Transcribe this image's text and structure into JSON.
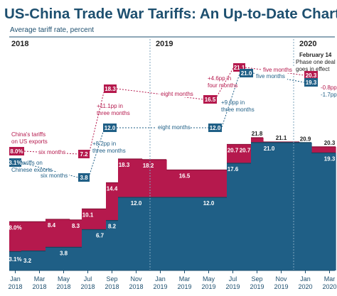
{
  "title": "US-China Trade War Tariffs: An Up-to-Date Chart",
  "subtitle": "Average tariff rate, percent",
  "years": [
    "2018",
    "2019",
    "2020"
  ],
  "colors": {
    "china": "#b5194d",
    "china_dark": "#8b1038",
    "us": "#1f5f86",
    "us_dark": "#15455f",
    "annotation_text": "#1d4f6f",
    "grid": "#7fa6bd"
  },
  "chart_data": {
    "type": "area",
    "x": [
      "2018-01",
      "2018-02",
      "2018-03",
      "2018-04",
      "2018-05",
      "2018-06",
      "2018-07",
      "2018-08",
      "2018-09",
      "2018-10",
      "2018-11",
      "2018-12",
      "2019-01",
      "2019-02",
      "2019-03",
      "2019-04",
      "2019-05",
      "2019-06",
      "2019-07",
      "2019-08",
      "2019-09",
      "2019-10",
      "2019-11",
      "2019-12",
      "2020-01",
      "2020-02",
      "2020-03"
    ],
    "x_ticks": [
      "Jan 2018",
      "Mar 2018",
      "May 2018",
      "Jul 2018",
      "Sep 2018",
      "Nov 2018",
      "Jan 2019",
      "Mar 2019",
      "May 2019",
      "Jul 2019",
      "Sep 2019",
      "Nov 2019",
      "Jan 2020",
      "Mar 2020"
    ],
    "series": [
      {
        "key": "china",
        "name": "China's tariffs on US exports",
        "values": [
          8.0,
          8.0,
          8.0,
          8.4,
          8.4,
          8.3,
          10.1,
          10.1,
          14.4,
          18.3,
          18.3,
          18.2,
          18.2,
          16.5,
          16.5,
          16.5,
          16.5,
          16.5,
          20.7,
          20.7,
          21.8,
          21.1,
          21.1,
          21.1,
          20.9,
          20.3,
          20.3
        ]
      },
      {
        "key": "us",
        "name": "US tariffs on Chinese exports",
        "values": [
          3.1,
          3.2,
          3.2,
          3.8,
          3.8,
          3.8,
          6.7,
          6.7,
          8.2,
          12.0,
          12.0,
          12.0,
          12.0,
          12.0,
          12.0,
          12.0,
          12.0,
          12.0,
          17.6,
          17.6,
          21.0,
          21.0,
          21.0,
          21.0,
          21.0,
          19.3,
          19.3
        ]
      }
    ],
    "bar_labels": [
      {
        "series": "china",
        "index": 0,
        "text": "8.0%"
      },
      {
        "series": "china",
        "index": 3,
        "text": "8.4"
      },
      {
        "series": "china",
        "index": 5,
        "text": "8.3"
      },
      {
        "series": "china",
        "index": 6,
        "text": "10.1"
      },
      {
        "series": "china",
        "index": 8,
        "text": "14.4"
      },
      {
        "series": "china",
        "index": 9,
        "text": "18.3"
      },
      {
        "series": "china",
        "index": 11,
        "text": "18.2"
      },
      {
        "series": "china",
        "index": 14,
        "text": "16.5"
      },
      {
        "series": "china",
        "index": 18,
        "text": "20.7"
      },
      {
        "series": "china",
        "index": 19,
        "text": "20.7"
      },
      {
        "series": "china",
        "index": 20,
        "text": "21.8"
      },
      {
        "series": "china",
        "index": 22,
        "text": "21.1"
      },
      {
        "series": "china",
        "index": 24,
        "text": "20.9"
      },
      {
        "series": "china",
        "index": 26,
        "text": "20.3"
      },
      {
        "series": "us",
        "index": 0,
        "text": "3.1%"
      },
      {
        "series": "us",
        "index": 1,
        "text": "3.2"
      },
      {
        "series": "us",
        "index": 4,
        "text": "3.8"
      },
      {
        "series": "us",
        "index": 7,
        "text": "6.7"
      },
      {
        "series": "us",
        "index": 8,
        "text": "8.2"
      },
      {
        "series": "us",
        "index": 10,
        "text": "12.0"
      },
      {
        "series": "us",
        "index": 16,
        "text": "12.0"
      },
      {
        "series": "us",
        "index": 18,
        "text": "17.6"
      },
      {
        "series": "us",
        "index": 21,
        "text": "21.0"
      },
      {
        "series": "us",
        "index": 26,
        "text": "19.3"
      }
    ],
    "ylim": [
      0,
      38
    ],
    "grid": false
  },
  "annotations": {
    "china_legend_line1": "China's tariffs",
    "china_legend_line2": "on US exports",
    "us_legend_line1": "US tariffs on",
    "us_legend_line2": "Chinese exports",
    "china_box_start": "8.0%",
    "china_box_7_2": "7.2",
    "china_box_18_3": "18.3",
    "china_box_16_5": "16.5",
    "china_box_21_1": "21.1",
    "china_box_20_3": "20.3",
    "us_box_start": "3.1%",
    "us_box_3_8": "3.8",
    "us_box_12_0a": "12.0",
    "us_box_12_0b": "12.0",
    "us_box_21_0": "21.0",
    "us_box_19_3": "19.3",
    "six_months_china": "six months",
    "six_months_us": "six months",
    "eight_months_china": "eight months",
    "eight_months_us": "eight months",
    "five_months_china": "five months",
    "five_months_us": "five months",
    "china_step1_line1": "+11.1pp in",
    "china_step1_line2": "three months",
    "us_step1_line1": "+8.2pp in",
    "us_step1_line2": "three months",
    "china_step2_line1": "+4.6pp in",
    "china_step2_line2": "four months",
    "us_step2_line1": "+9.0pp in",
    "us_step2_line2": "three months",
    "china_drop": "-0.8pp",
    "us_drop": "-1.7pp",
    "phase_one_line1": "February 14",
    "phase_one_line2": "Phase one deal",
    "phase_one_line3": "goes in effect"
  }
}
